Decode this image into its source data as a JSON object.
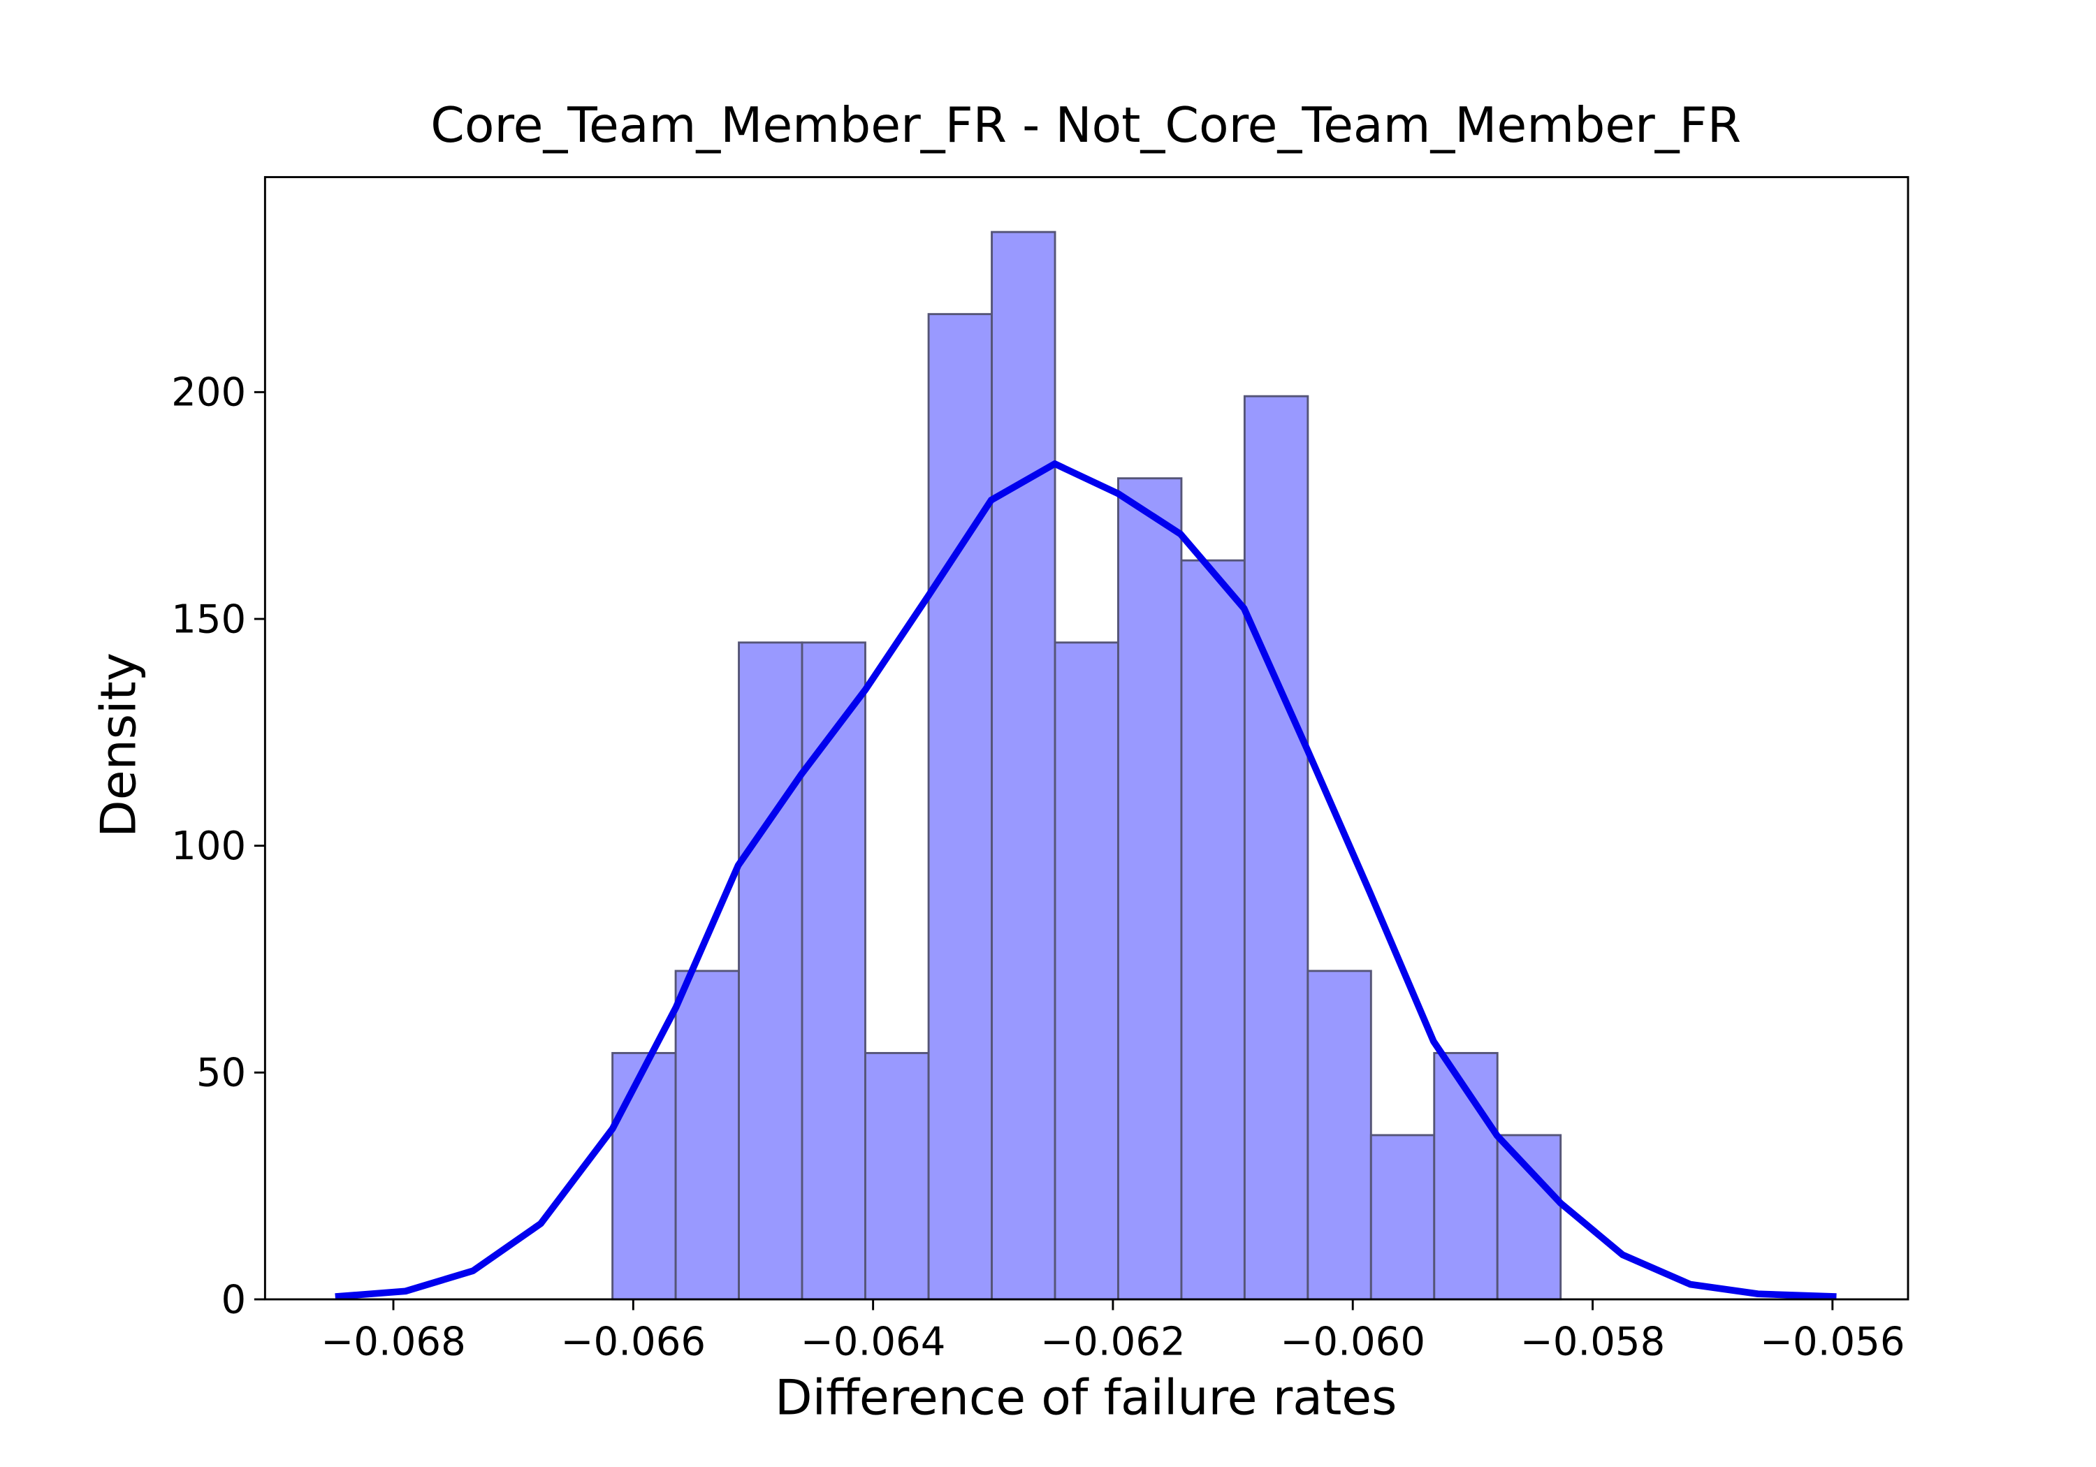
{
  "chart_data": {
    "type": "histogram",
    "title": "Core_Team_Member_FR - Not_Core_Team_Member_FR",
    "xlabel": "Difference of failure rates",
    "ylabel": "Density",
    "bins": [
      -0.066173,
      -0.065646,
      -0.065119,
      -0.064592,
      -0.064065,
      -0.063537,
      -0.06301,
      -0.062483,
      -0.061956,
      -0.061429,
      -0.060902,
      -0.060375,
      -0.059848,
      -0.059321,
      -0.058794,
      -0.058267
    ],
    "values": [
      54.3,
      72.4,
      144.8,
      144.8,
      54.3,
      217.2,
      235.3,
      144.8,
      181,
      162.9,
      199.1,
      72.4,
      36.2,
      54.3,
      36.2
    ],
    "color": "#9999ff",
    "edgecolor": "#555577",
    "kde": {
      "color": "#0000ee",
      "x": [
        -0.068485,
        -0.067899,
        -0.067335,
        -0.066771,
        -0.066173,
        -0.065643,
        -0.065124,
        -0.064594,
        -0.064064,
        -0.063534,
        -0.063015,
        -0.062485,
        -0.061955,
        -0.061436,
        -0.060906,
        -0.060376,
        -0.059857,
        -0.059327,
        -0.058797,
        -0.058267,
        -0.057749,
        -0.057185,
        -0.056621,
        -0.055967
      ],
      "values": [
        0.6,
        1.8,
        6.3,
        16.7,
        37.6,
        64.4,
        95.7,
        115.9,
        134.4,
        155.3,
        176.2,
        184.2,
        177.6,
        168.7,
        152.3,
        121.0,
        89.7,
        56.9,
        36.1,
        21.2,
        9.8,
        3.3,
        1.2,
        0.6
      ]
    },
    "xlim": [
      -0.06907,
      -0.05537
    ],
    "ylim": [
      0,
      247.4
    ],
    "xticks": [
      {
        "value": -0.068,
        "label": "−0.068"
      },
      {
        "value": -0.066,
        "label": "−0.066"
      },
      {
        "value": -0.064,
        "label": "−0.064"
      },
      {
        "value": -0.062,
        "label": "−0.062"
      },
      {
        "value": -0.06,
        "label": "−0.060"
      },
      {
        "value": -0.058,
        "label": "−0.058"
      },
      {
        "value": -0.056,
        "label": "−0.056"
      }
    ],
    "yticks": [
      0,
      50,
      100,
      150,
      200
    ]
  }
}
